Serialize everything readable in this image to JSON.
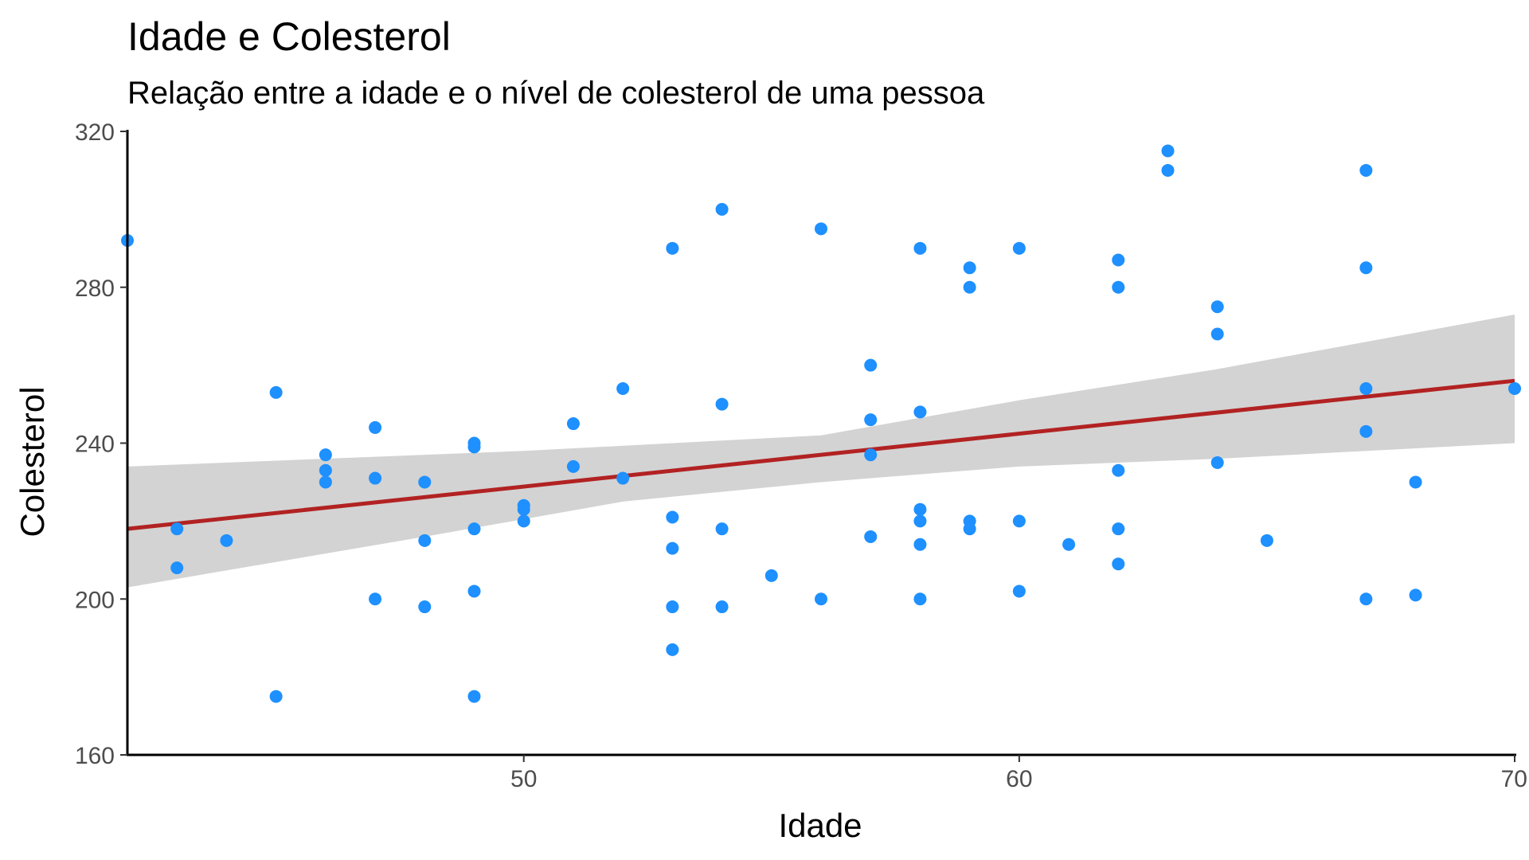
{
  "chart_data": {
    "type": "scatter",
    "title": "Idade e Colesterol",
    "subtitle": "Relação entre a idade e o nível de colesterol de uma pessoa",
    "xlabel": "Idade",
    "ylabel": "Colesterol",
    "xlim": [
      42,
      70
    ],
    "ylim": [
      160,
      320
    ],
    "x_ticks": [
      50,
      60,
      70
    ],
    "y_ticks": [
      160,
      200,
      240,
      280,
      320
    ],
    "grid": false,
    "colors": {
      "points": "#1E90FF",
      "trend_line": "#B22222",
      "confidence_band": "#D3D3D3",
      "axis": "#000000"
    },
    "trend": {
      "method": "linear",
      "line": [
        [
          42,
          218
        ],
        [
          70,
          256
        ]
      ],
      "band_upper": [
        [
          42,
          234
        ],
        [
          50,
          238
        ],
        [
          56,
          242
        ],
        [
          60,
          251
        ],
        [
          64,
          259
        ],
        [
          70,
          273
        ]
      ],
      "band_lower": [
        [
          42,
          203
        ],
        [
          48,
          216
        ],
        [
          52,
          225
        ],
        [
          56,
          230
        ],
        [
          60,
          234
        ],
        [
          64,
          236
        ],
        [
          70,
          240
        ]
      ]
    },
    "points": [
      {
        "x": 42,
        "y": 292
      },
      {
        "x": 43,
        "y": 218
      },
      {
        "x": 43,
        "y": 208
      },
      {
        "x": 44,
        "y": 215
      },
      {
        "x": 45,
        "y": 253
      },
      {
        "x": 45,
        "y": 175
      },
      {
        "x": 46,
        "y": 237
      },
      {
        "x": 46,
        "y": 233
      },
      {
        "x": 46,
        "y": 230
      },
      {
        "x": 47,
        "y": 244
      },
      {
        "x": 47,
        "y": 231
      },
      {
        "x": 47,
        "y": 200
      },
      {
        "x": 48,
        "y": 230
      },
      {
        "x": 48,
        "y": 215
      },
      {
        "x": 48,
        "y": 198
      },
      {
        "x": 49,
        "y": 240
      },
      {
        "x": 49,
        "y": 239
      },
      {
        "x": 49,
        "y": 218
      },
      {
        "x": 49,
        "y": 202
      },
      {
        "x": 49,
        "y": 175
      },
      {
        "x": 50,
        "y": 224
      },
      {
        "x": 50,
        "y": 223
      },
      {
        "x": 50,
        "y": 220
      },
      {
        "x": 51,
        "y": 245
      },
      {
        "x": 51,
        "y": 234
      },
      {
        "x": 52,
        "y": 254
      },
      {
        "x": 52,
        "y": 231
      },
      {
        "x": 53,
        "y": 290
      },
      {
        "x": 53,
        "y": 221
      },
      {
        "x": 53,
        "y": 213
      },
      {
        "x": 53,
        "y": 198
      },
      {
        "x": 53,
        "y": 187
      },
      {
        "x": 54,
        "y": 300
      },
      {
        "x": 54,
        "y": 250
      },
      {
        "x": 54,
        "y": 218
      },
      {
        "x": 54,
        "y": 198
      },
      {
        "x": 55,
        "y": 206
      },
      {
        "x": 56,
        "y": 295
      },
      {
        "x": 56,
        "y": 200
      },
      {
        "x": 57,
        "y": 260
      },
      {
        "x": 57,
        "y": 246
      },
      {
        "x": 57,
        "y": 237
      },
      {
        "x": 57,
        "y": 216
      },
      {
        "x": 58,
        "y": 290
      },
      {
        "x": 58,
        "y": 248
      },
      {
        "x": 58,
        "y": 223
      },
      {
        "x": 58,
        "y": 220
      },
      {
        "x": 58,
        "y": 214
      },
      {
        "x": 58,
        "y": 200
      },
      {
        "x": 59,
        "y": 285
      },
      {
        "x": 59,
        "y": 280
      },
      {
        "x": 59,
        "y": 220
      },
      {
        "x": 59,
        "y": 218
      },
      {
        "x": 60,
        "y": 290
      },
      {
        "x": 60,
        "y": 220
      },
      {
        "x": 60,
        "y": 202
      },
      {
        "x": 61,
        "y": 214
      },
      {
        "x": 62,
        "y": 287
      },
      {
        "x": 62,
        "y": 280
      },
      {
        "x": 62,
        "y": 233
      },
      {
        "x": 62,
        "y": 218
      },
      {
        "x": 62,
        "y": 209
      },
      {
        "x": 63,
        "y": 315
      },
      {
        "x": 63,
        "y": 310
      },
      {
        "x": 64,
        "y": 275
      },
      {
        "x": 64,
        "y": 268
      },
      {
        "x": 64,
        "y": 235
      },
      {
        "x": 65,
        "y": 215
      },
      {
        "x": 67,
        "y": 310
      },
      {
        "x": 67,
        "y": 285
      },
      {
        "x": 67,
        "y": 254
      },
      {
        "x": 67,
        "y": 243
      },
      {
        "x": 67,
        "y": 200
      },
      {
        "x": 68,
        "y": 230
      },
      {
        "x": 68,
        "y": 201
      },
      {
        "x": 70,
        "y": 254
      }
    ]
  }
}
